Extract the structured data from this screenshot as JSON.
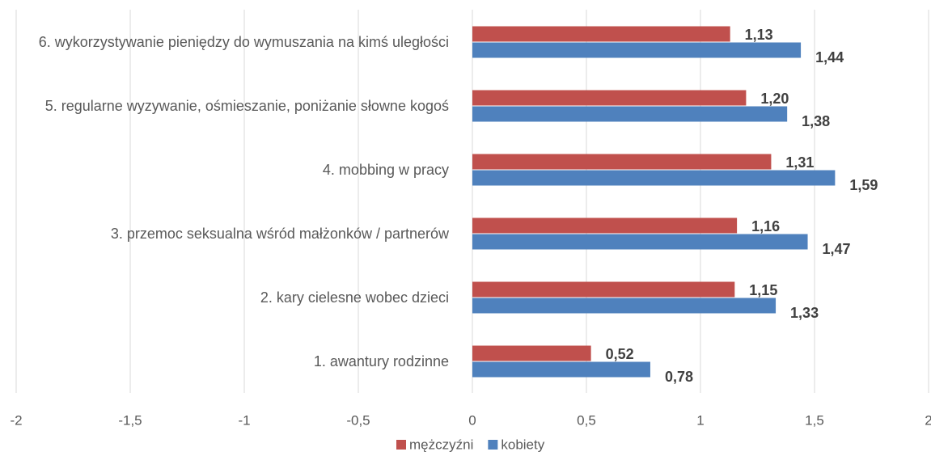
{
  "chart_data": {
    "type": "hbar",
    "categories": [
      "1.  awantury rodzinne",
      "2.  kary cielesne wobec dzieci",
      "3.  przemoc seksualna wśród małżonków / partnerów",
      "4.  mobbing w pracy",
      "5.  regularne wyzywanie, ośmieszanie, poniżanie słowne kogoś",
      "6. wykorzystywanie pieniędzy do wymuszania na kimś uległości"
    ],
    "series": [
      {
        "name": "mężczyźni",
        "color": "#c0504d",
        "values": [
          0.52,
          1.15,
          1.16,
          1.31,
          1.2,
          1.13
        ],
        "value_labels": [
          "0,52",
          "1,15",
          "1,16",
          "1,31",
          "1,20",
          "1,13"
        ]
      },
      {
        "name": "kobiety",
        "color": "#4f81bd",
        "values": [
          0.78,
          1.33,
          1.47,
          1.59,
          1.38,
          1.44
        ],
        "value_labels": [
          "0,78",
          "1,33",
          "1,47",
          "1,59",
          "1,38",
          "1,44"
        ]
      }
    ],
    "xlim": [
      -2,
      2
    ],
    "xticks": [
      -2,
      {
        "value": -1.5,
        "label": "-1,5"
      },
      -1,
      {
        "value": -0.5,
        "label": "-0,5"
      },
      0,
      {
        "value": 0.5,
        "label": "0,5"
      },
      1,
      {
        "value": 1.5,
        "label": "1,5"
      },
      2
    ],
    "grid": true,
    "legend": "bottom"
  }
}
